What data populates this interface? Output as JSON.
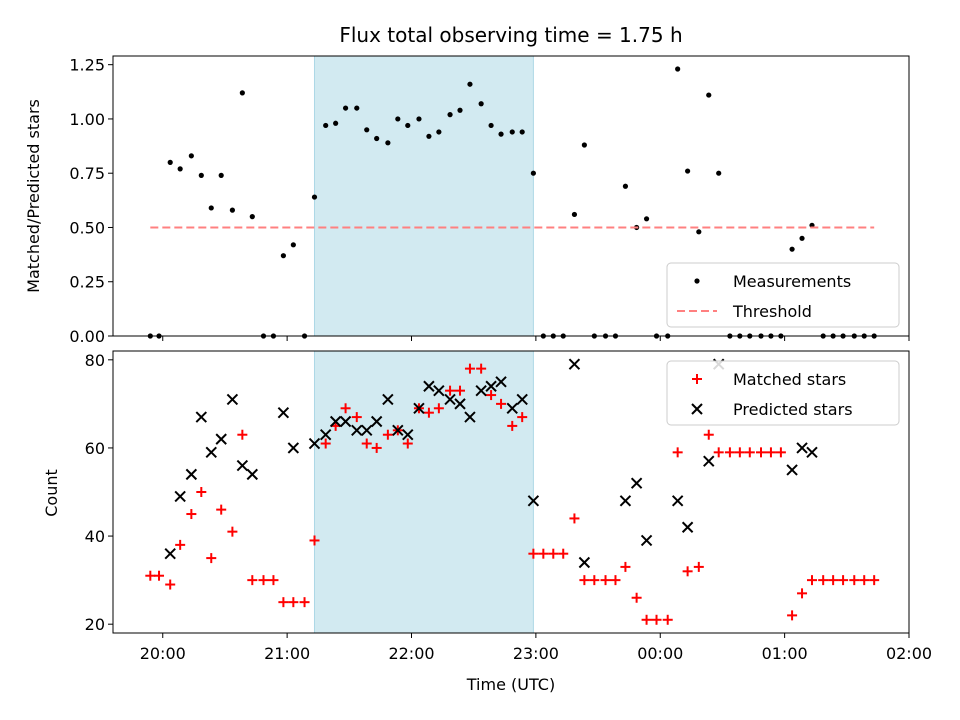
{
  "chart_data": [
    {
      "type": "scatter",
      "title": "Flux total observing time = 1.75 h",
      "xlabel": "",
      "ylabel": "Matched/Predicted stars",
      "ylim": [
        0,
        1.29
      ],
      "yticks": [
        0.0,
        0.25,
        0.5,
        0.75,
        1.0,
        1.25
      ],
      "ytick_labels": [
        "0.00",
        "0.25",
        "0.50",
        "0.75",
        "1.00",
        "1.25"
      ],
      "xlim": [
        19.6,
        26.0
      ],
      "xticks": [
        20,
        21,
        22,
        23,
        24,
        25,
        26
      ],
      "shaded_span": [
        21.22,
        22.98
      ],
      "shade_color": "#add8e6",
      "legend": {
        "position": "lower-right",
        "entries": [
          "Measurements",
          "Threshold"
        ]
      },
      "series": [
        {
          "name": "Measurements",
          "color": "#000000",
          "marker": "dot",
          "x": [
            19.9,
            19.97,
            20.06,
            20.14,
            20.23,
            20.31,
            20.39,
            20.47,
            20.56,
            20.64,
            20.72,
            20.81,
            20.89,
            20.97,
            21.05,
            21.14,
            21.22,
            21.31,
            21.39,
            21.47,
            21.56,
            21.64,
            21.72,
            21.81,
            21.89,
            21.97,
            22.06,
            22.14,
            22.22,
            22.31,
            22.39,
            22.47,
            22.56,
            22.64,
            22.72,
            22.81,
            22.89,
            22.98,
            23.06,
            23.14,
            23.22,
            23.31,
            23.39,
            23.47,
            23.56,
            23.64,
            23.72,
            23.81,
            23.89,
            23.97,
            24.06,
            24.14,
            24.22,
            24.31,
            24.39,
            24.47,
            24.56,
            24.64,
            24.72,
            24.81,
            24.89,
            24.97,
            25.06,
            25.14,
            25.22,
            25.31,
            25.39,
            25.47,
            25.56,
            25.64,
            25.72
          ],
          "y": [
            0.0,
            0.0,
            0.8,
            0.77,
            0.83,
            0.74,
            0.59,
            0.74,
            0.58,
            1.12,
            0.55,
            0.0,
            0.0,
            0.37,
            0.42,
            0.0,
            0.64,
            0.97,
            0.98,
            1.05,
            1.05,
            0.95,
            0.91,
            0.89,
            1.0,
            0.97,
            1.0,
            0.92,
            0.94,
            1.02,
            1.04,
            1.16,
            1.07,
            0.97,
            0.93,
            0.94,
            0.94,
            0.75,
            0.0,
            0.0,
            0.0,
            0.56,
            0.88,
            0.0,
            0.0,
            0.0,
            0.69,
            0.5,
            0.54,
            0.0,
            0.0,
            1.23,
            0.76,
            0.48,
            1.11,
            0.75,
            0.0,
            0.0,
            0.0,
            0.0,
            0.0,
            0.0,
            0.4,
            0.45,
            0.51,
            0.0,
            0.0,
            0.0,
            0.0,
            0.0,
            0.0
          ]
        },
        {
          "name": "Threshold",
          "color": "#ff8080",
          "style": "dashed",
          "x": [
            19.9,
            25.72
          ],
          "y": [
            0.5,
            0.5
          ]
        }
      ]
    },
    {
      "type": "scatter",
      "title": "",
      "xlabel": "Time (UTC)",
      "ylabel": "Count",
      "ylim": [
        18,
        82
      ],
      "yticks": [
        20,
        40,
        60,
        80
      ],
      "ytick_labels": [
        "20",
        "40",
        "60",
        "80"
      ],
      "xlim": [
        19.6,
        26.0
      ],
      "xticks": [
        20,
        21,
        22,
        23,
        24,
        25,
        26
      ],
      "xtick_labels": [
        "20:00",
        "21:00",
        "22:00",
        "23:00",
        "00:00",
        "01:00",
        "02:00"
      ],
      "shaded_span": [
        21.22,
        22.98
      ],
      "shade_color": "#add8e6",
      "legend": {
        "position": "top-right",
        "entries": [
          "Matched stars",
          "Predicted stars"
        ]
      },
      "series": [
        {
          "name": "Matched stars",
          "color": "#ff0000",
          "marker": "plus",
          "x": [
            19.9,
            19.97,
            20.06,
            20.14,
            20.23,
            20.31,
            20.39,
            20.47,
            20.56,
            20.64,
            20.72,
            20.81,
            20.89,
            20.97,
            21.05,
            21.14,
            21.22,
            21.31,
            21.39,
            21.47,
            21.56,
            21.64,
            21.72,
            21.81,
            21.89,
            21.97,
            22.06,
            22.14,
            22.22,
            22.31,
            22.39,
            22.47,
            22.56,
            22.64,
            22.72,
            22.81,
            22.89,
            22.98,
            23.06,
            23.14,
            23.22,
            23.31,
            23.39,
            23.47,
            23.56,
            23.64,
            23.72,
            23.81,
            23.89,
            23.97,
            24.06,
            24.14,
            24.22,
            24.31,
            24.39,
            24.47,
            24.56,
            24.64,
            24.72,
            24.81,
            24.89,
            24.97,
            25.06,
            25.14,
            25.22,
            25.31,
            25.39,
            25.47,
            25.56,
            25.64,
            25.72
          ],
          "y": [
            31,
            31,
            29,
            38,
            45,
            50,
            35,
            46,
            41,
            63,
            30,
            30,
            30,
            25,
            25,
            25,
            39,
            61,
            65,
            69,
            67,
            61,
            60,
            63,
            64,
            61,
            69,
            68,
            69,
            73,
            73,
            78,
            78,
            72,
            70,
            65,
            67,
            36,
            36,
            36,
            36,
            44,
            30,
            30,
            30,
            30,
            33,
            26,
            21,
            21,
            21,
            59,
            32,
            33,
            63,
            59,
            59,
            59,
            59,
            59,
            59,
            59,
            22,
            27,
            30,
            30,
            30,
            30,
            30,
            30,
            30
          ]
        },
        {
          "name": "Predicted stars",
          "color": "#000000",
          "marker": "x",
          "x": [
            20.06,
            20.14,
            20.23,
            20.31,
            20.39,
            20.47,
            20.56,
            20.64,
            20.72,
            20.97,
            21.05,
            21.22,
            21.31,
            21.39,
            21.47,
            21.56,
            21.64,
            21.72,
            21.81,
            21.89,
            21.97,
            22.06,
            22.14,
            22.22,
            22.31,
            22.39,
            22.47,
            22.56,
            22.64,
            22.72,
            22.81,
            22.89,
            22.98,
            23.31,
            23.39,
            23.72,
            23.81,
            23.89,
            24.14,
            24.22,
            24.39,
            24.47,
            25.06,
            25.14,
            25.22
          ],
          "y": [
            36,
            49,
            54,
            67,
            59,
            62,
            71,
            56,
            54,
            68,
            60,
            61,
            63,
            66,
            66,
            64,
            64,
            66,
            71,
            64,
            63,
            69,
            74,
            73,
            71,
            70,
            67,
            73,
            74,
            75,
            69,
            71,
            48,
            79,
            34,
            48,
            52,
            39,
            48,
            42,
            57,
            79,
            55,
            60,
            59
          ]
        }
      ]
    }
  ]
}
